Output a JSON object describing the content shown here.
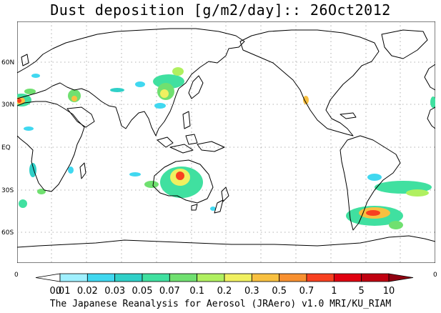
{
  "title": "Dust deposition [g/m2/day]:: 26Oct2012",
  "credit": "The Japanese Reanalysis for Aerosol (JRAero) v1.0 MRI/KU_RIAM",
  "lat_labels": [
    "60N",
    "30N",
    "EQ",
    "30S",
    "60S"
  ],
  "lon_edge_labels": {
    "left": "0",
    "right": "0"
  },
  "colorbar": {
    "labels": [
      "0",
      "0.01",
      "0.02",
      "0.03",
      "0.05",
      "0.07",
      "0.1",
      "0.2",
      "0.3",
      "0.5",
      "0.7",
      "1",
      "5",
      "10"
    ],
    "colors": [
      "#ffffff",
      "#a0f0ff",
      "#40d8f0",
      "#30d0c8",
      "#40e0a0",
      "#70e070",
      "#b0f060",
      "#f0f060",
      "#f8c040",
      "#f89030",
      "#f84020",
      "#e00010",
      "#c00010",
      "#900010"
    ]
  },
  "colors": {
    "coast": "#000000",
    "grid": "#999999",
    "frame": "#000000"
  }
}
